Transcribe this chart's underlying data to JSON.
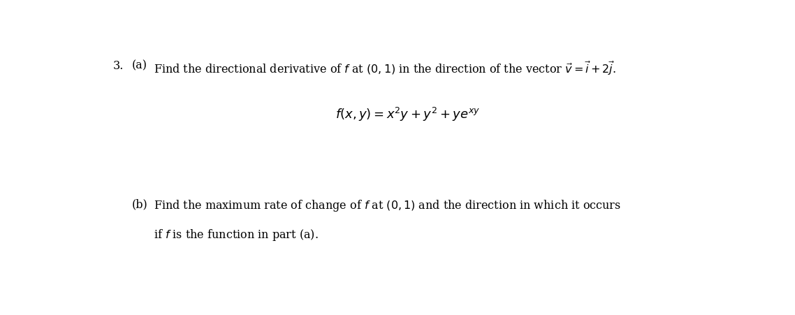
{
  "background_color": "#ffffff",
  "fig_width": 11.38,
  "fig_height": 4.52,
  "dpi": 100,
  "problem_number": "3.",
  "part_a_label": "(a)",
  "part_a_text": "Find the directional derivative of $f$ at $(0,1)$ in the direction of the vector $\\vec{v} = \\vec{i}+2\\vec{j}$.",
  "formula": "$f(x, y) = x^2y + y^2 + ye^{xy}$",
  "part_b_label": "(b)",
  "part_b_line1": "Find the maximum rate of change of $f$ at $(0,1)$ and the direction in which it occurs",
  "part_b_line2": "if $f$ is the function in part (a).",
  "text_color": "#000000",
  "fontsize_main": 11.5,
  "fontsize_formula": 13
}
